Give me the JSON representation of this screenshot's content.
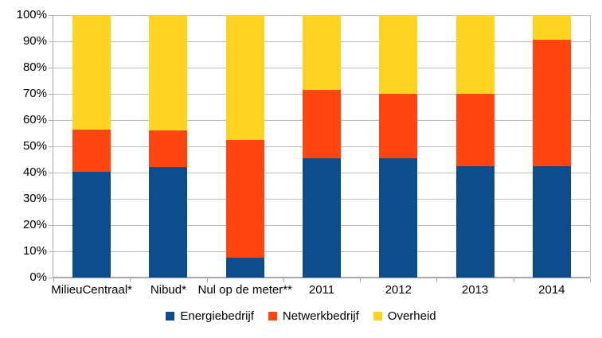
{
  "chart_data": {
    "type": "bar",
    "subtype": "stacked-100-percent",
    "title": "",
    "xlabel": "",
    "ylabel": "",
    "categories": [
      "MilieuCentraal*",
      "Nibud*",
      "Nul op de meter**",
      "2011",
      "2012",
      "2013",
      "2014"
    ],
    "series": [
      {
        "name": "Energiebedrijf",
        "color": "#0D4D8C",
        "values": [
          40.3,
          42.0,
          7.5,
          45.5,
          45.5,
          42.5,
          42.5
        ]
      },
      {
        "name": "Netwerkbedrijf",
        "color": "#FF4510",
        "values": [
          16.2,
          14.0,
          44.8,
          26.0,
          24.5,
          27.5,
          48.0
        ]
      },
      {
        "name": "Overheid",
        "color": "#FFD322",
        "values": [
          43.5,
          44.0,
          47.7,
          28.5,
          30.0,
          30.0,
          9.5
        ]
      }
    ],
    "ylim": [
      0,
      100
    ],
    "y_tick_labels": [
      "0%",
      "10%",
      "20%",
      "30%",
      "40%",
      "50%",
      "60%",
      "70%",
      "80%",
      "90%",
      "100%"
    ],
    "y_tick_values": [
      0,
      10,
      20,
      30,
      40,
      50,
      60,
      70,
      80,
      90,
      100
    ],
    "grid": "horizontal",
    "legend_position": "bottom",
    "colors": {
      "grid": "#BDBDBD",
      "axis": "#A9A9A9",
      "text": "#000000",
      "background": "#FFFFFF"
    }
  }
}
